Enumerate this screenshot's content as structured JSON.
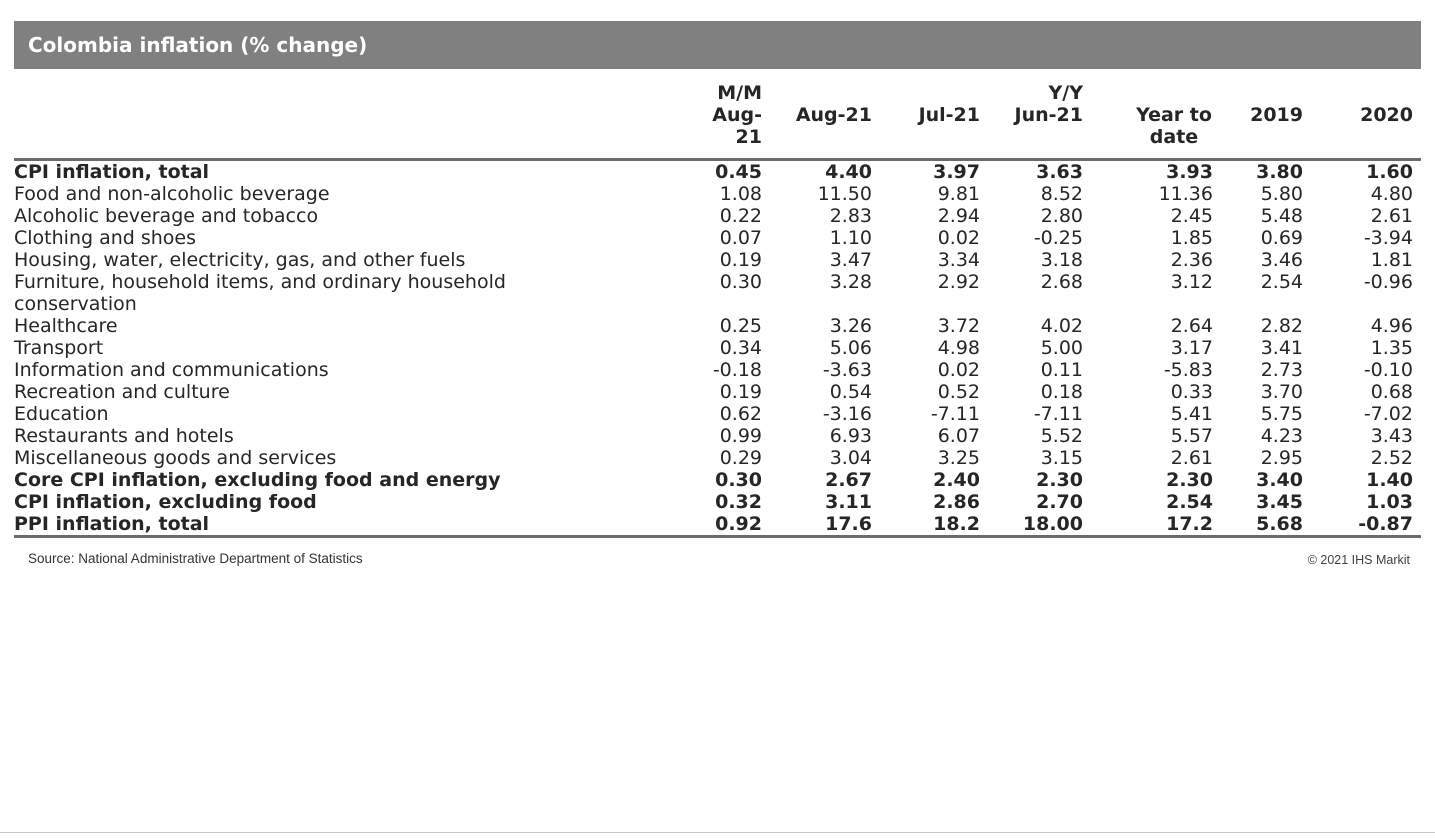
{
  "chart_data": {
    "type": "table",
    "title": "Colombia inflation (% change)",
    "group_headers": {
      "mm": "M/M",
      "yy": "Y/Y"
    },
    "columns": [
      "Aug-21",
      "Aug-21",
      "Jul-21",
      "Jun-21",
      "Year to date",
      "2019",
      "2020"
    ],
    "rows": [
      {
        "label": "CPI inflation, total",
        "indent": 1,
        "bold": true,
        "values": [
          "0.45",
          "4.40",
          "3.97",
          "3.63",
          "3.93",
          "3.80",
          "1.60"
        ]
      },
      {
        "label": "Food and non-alcoholic beverage",
        "indent": 2,
        "bold": false,
        "values": [
          "1.08",
          "11.50",
          "9.81",
          "8.52",
          "11.36",
          "5.80",
          "4.80"
        ]
      },
      {
        "label": "Alcoholic beverage and tobacco",
        "indent": 2,
        "bold": false,
        "values": [
          "0.22",
          "2.83",
          "2.94",
          "2.80",
          "2.45",
          "5.48",
          "2.61"
        ]
      },
      {
        "label": "Clothing and shoes",
        "indent": 2,
        "bold": false,
        "values": [
          "0.07",
          "1.10",
          "0.02",
          "-0.25",
          "1.85",
          "0.69",
          "-3.94"
        ]
      },
      {
        "label": "Housing, water, electricity, gas, and other fuels",
        "indent": 2,
        "bold": false,
        "values": [
          "0.19",
          "3.47",
          "3.34",
          "3.18",
          "2.36",
          "3.46",
          "1.81"
        ]
      },
      {
        "label": "Furniture, household items, and ordinary household conservation",
        "indent": 2,
        "bold": false,
        "values": [
          "0.30",
          "3.28",
          "2.92",
          "2.68",
          "3.12",
          "2.54",
          "-0.96"
        ]
      },
      {
        "label": "Healthcare",
        "indent": 2,
        "bold": false,
        "values": [
          "0.25",
          "3.26",
          "3.72",
          "4.02",
          "2.64",
          "2.82",
          "4.96"
        ]
      },
      {
        "label": "Transport",
        "indent": 2,
        "bold": false,
        "values": [
          "0.34",
          "5.06",
          "4.98",
          "5.00",
          "3.17",
          "3.41",
          "1.35"
        ]
      },
      {
        "label": "Information and communications",
        "indent": 2,
        "bold": false,
        "values": [
          "-0.18",
          "-3.63",
          "0.02",
          "0.11",
          "-5.83",
          "2.73",
          "-0.10"
        ]
      },
      {
        "label": "Recreation and culture",
        "indent": 2,
        "bold": false,
        "values": [
          "0.19",
          "0.54",
          "0.52",
          "0.18",
          "0.33",
          "3.70",
          "0.68"
        ]
      },
      {
        "label": "Education",
        "indent": 2,
        "bold": false,
        "values": [
          "0.62",
          "-3.16",
          "-7.11",
          "-7.11",
          "5.41",
          "5.75",
          "-7.02"
        ]
      },
      {
        "label": "Restaurants and hotels",
        "indent": 2,
        "bold": false,
        "values": [
          "0.99",
          "6.93",
          "6.07",
          "5.52",
          "5.57",
          "4.23",
          "3.43"
        ]
      },
      {
        "label": "Miscellaneous goods and services",
        "indent": 2,
        "bold": false,
        "values": [
          "0.29",
          "3.04",
          "3.25",
          "3.15",
          "2.61",
          "2.95",
          "2.52"
        ]
      },
      {
        "label": "Core CPI inflation, excluding food and energy",
        "indent": 1,
        "bold": true,
        "values": [
          "0.30",
          "2.67",
          "2.40",
          "2.30",
          "2.30",
          "3.40",
          "1.40"
        ]
      },
      {
        "label": "CPI inflation, excluding food",
        "indent": 1,
        "bold": true,
        "values": [
          "0.32",
          "3.11",
          "2.86",
          "2.70",
          "2.54",
          "3.45",
          "1.03"
        ]
      },
      {
        "label": "PPI inflation, total",
        "indent": 0,
        "bold": true,
        "values": [
          "0.92",
          "17.6",
          "18.2",
          "18.00",
          "17.2",
          "5.68",
          "-0.87"
        ]
      }
    ]
  },
  "footer": {
    "source": "Source: National Administrative Department of Statistics",
    "copyright": "© 2021 IHS Markit"
  },
  "colors": {
    "title_bar_bg": "#808080",
    "title_fg": "#ffffff",
    "rule": "#6b6b6b",
    "text": "#262626",
    "bottom_line": "#c8c8c8"
  }
}
